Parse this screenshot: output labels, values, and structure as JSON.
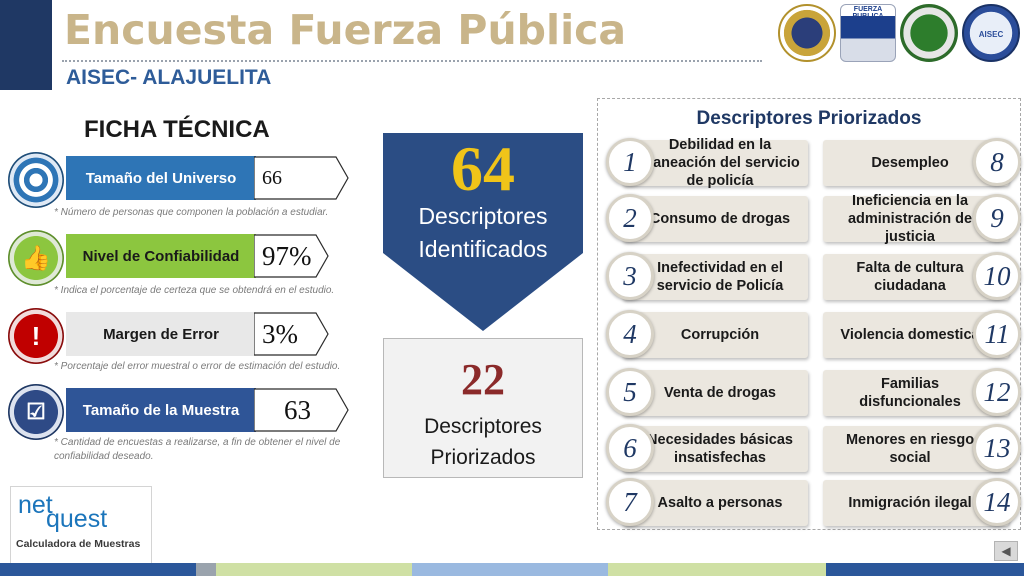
{
  "header": {
    "title": "Encuesta Fuerza Pública",
    "subtitle": "AISEC- ALAJUELITA",
    "fuerza_logo_text": "FUERZA PUBLICA",
    "aisec_logo_text": "AISEC"
  },
  "ficha": {
    "title": "FICHA TÉCNICA",
    "rows": [
      {
        "label": "Tamaño del Universo",
        "value": "66",
        "note": "* Número de personas que componen la población a estudiar.",
        "color": "#2e75b6",
        "icon": "target-icon"
      },
      {
        "label": "Nivel de Confiabilidad",
        "value": "97%",
        "note": "* Indica el porcentaje de certeza que se obtendrá en el estudio.",
        "color": "#70ad47",
        "icon": "thumbs-up-icon"
      },
      {
        "label": "Margen de Error",
        "value": "3%",
        "note": "* Porcentaje del error muestral o error de estimación del estudio.",
        "color": "#c00000",
        "icon": "alert-icon"
      },
      {
        "label": "Tamaño de la Muestra",
        "value": "63",
        "note": "* Cantidad de encuestas a realizarse, a fin de obtener el nivel de confiabilidad deseado.",
        "color": "#1f3864",
        "icon": "clipboard-check-icon"
      }
    ]
  },
  "summary": {
    "identified_number": "64",
    "identified_line1": "Descriptores",
    "identified_line2": "Identificados",
    "prioritized_number": "22",
    "prioritized_line1": "Descriptores",
    "prioritized_line2": "Priorizados"
  },
  "descriptores": {
    "title": "Descriptores Priorizados",
    "items": [
      {
        "num": "1",
        "text": "Debilidad en la planeación del servicio de policía"
      },
      {
        "num": "2",
        "text": "Consumo de drogas"
      },
      {
        "num": "3",
        "text": "Inefectividad en el servicio de Policía"
      },
      {
        "num": "4",
        "text": "Corrupción"
      },
      {
        "num": "5",
        "text": "Venta de drogas"
      },
      {
        "num": "6",
        "text": "Necesidades básicas insatisfechas"
      },
      {
        "num": "7",
        "text": "Asalto a personas"
      },
      {
        "num": "8",
        "text": "Desempleo"
      },
      {
        "num": "9",
        "text": "Ineficiencia en la administración de justicia"
      },
      {
        "num": "10",
        "text": "Falta de cultura ciudadana"
      },
      {
        "num": "11",
        "text": "Violencia domestica"
      },
      {
        "num": "12",
        "text": "Familias disfuncionales"
      },
      {
        "num": "13",
        "text": "Menores en riesgo social"
      },
      {
        "num": "14",
        "text": "Inmigración ilegal"
      }
    ]
  },
  "netquest": {
    "logo_net": "net",
    "logo_quest": "quest",
    "caption": "Calculadora de Muestras"
  },
  "nav": {
    "back_icon": "back-arrow-icon"
  }
}
